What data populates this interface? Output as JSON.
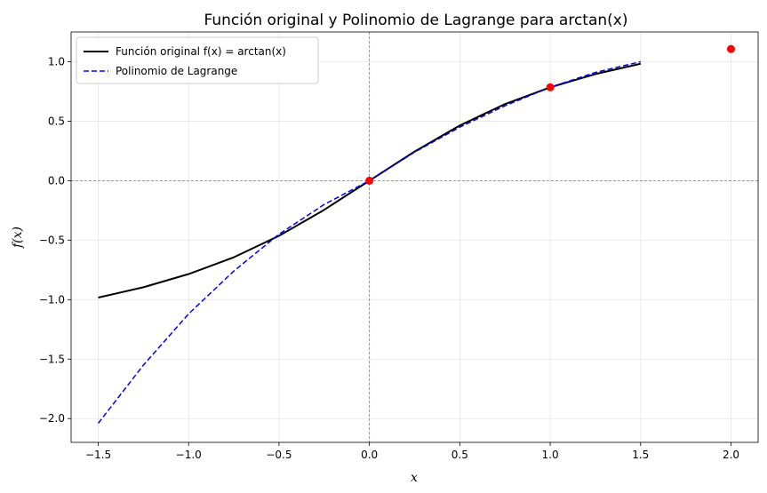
{
  "chart_data": {
    "type": "line",
    "title": "Función original y Polinomio de Lagrange para arctan(x)",
    "xlabel": "x",
    "ylabel": "f(x)",
    "xlim": [
      -1.65,
      2.15
    ],
    "ylim": [
      -2.2,
      1.25
    ],
    "x_ticks": [
      -1.5,
      -1.0,
      -0.5,
      0.0,
      0.5,
      1.0,
      1.5,
      2.0
    ],
    "x_tick_labels": [
      "−1.5",
      "−1.0",
      "−0.5",
      "0.0",
      "0.5",
      "1.0",
      "1.5",
      "2.0"
    ],
    "y_ticks": [
      -2.0,
      -1.5,
      -1.0,
      -0.5,
      0.0,
      0.5,
      1.0
    ],
    "y_tick_labels": [
      "−2.0",
      "−1.5",
      "−1.0",
      "−0.5",
      "0.0",
      "0.5",
      "1.0"
    ],
    "grid": true,
    "legend_position": "top-left",
    "reference_lines": {
      "x": 0,
      "y": 0
    },
    "series": [
      {
        "name": "Función original f(x) = arctan(x)",
        "style": "solid",
        "color": "#000000",
        "x": [
          -1.5,
          -1.25,
          -1.0,
          -0.75,
          -0.5,
          -0.25,
          0.0,
          0.25,
          0.5,
          0.75,
          1.0,
          1.25,
          1.5
        ],
        "y": [
          -0.983,
          -0.896,
          -0.785,
          -0.644,
          -0.464,
          -0.245,
          0.0,
          0.245,
          0.464,
          0.644,
          0.785,
          0.896,
          0.983
        ]
      },
      {
        "name": "Polinomio de Lagrange",
        "style": "dashed",
        "color": "#0000ff",
        "x": [
          -1.5,
          -1.25,
          -1.0,
          -0.75,
          -0.5,
          -0.25,
          0.0,
          0.25,
          0.5,
          0.75,
          1.0,
          1.25,
          1.5
        ],
        "y": [
          -2.04,
          -1.55,
          -1.12,
          -0.76,
          -0.45,
          -0.2,
          0.0,
          0.24,
          0.45,
          0.63,
          0.785,
          0.91,
          1.0
        ]
      }
    ],
    "points": {
      "color": "#ff0000",
      "x": [
        0.0,
        1.0,
        2.0
      ],
      "y": [
        0.0,
        0.785,
        1.107
      ]
    }
  }
}
